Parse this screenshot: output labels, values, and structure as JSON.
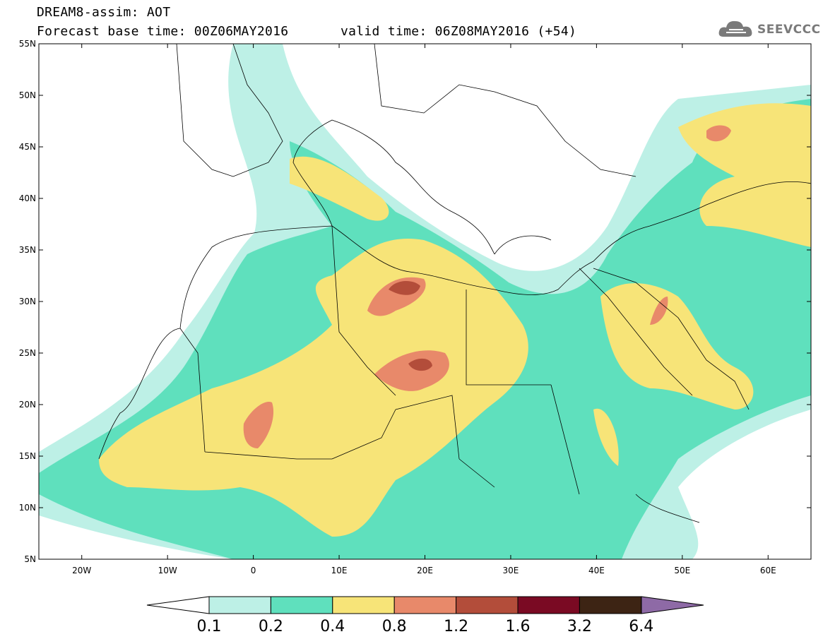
{
  "header": {
    "line1": "DREAM8-assim: AOT",
    "base_time": "Forecast base time: 00Z06MAY2016",
    "valid_time": "valid time: 06Z08MAY2016 (+54)",
    "logo_text": "SEEVCCC",
    "logo_icon": "cloud-icon"
  },
  "map": {
    "lon_range": [
      -25,
      65
    ],
    "lat_range": [
      5,
      55
    ],
    "lat_ticks": [
      "55N",
      "50N",
      "45N",
      "40N",
      "35N",
      "30N",
      "25N",
      "20N",
      "15N",
      "10N",
      "5N"
    ],
    "lon_ticks": [
      "20W",
      "10W",
      "0",
      "10E",
      "20E",
      "30E",
      "40E",
      "50E",
      "60E"
    ],
    "coastlines": "country-borders-outline"
  },
  "colorbar": {
    "labels": [
      "0.1",
      "0.2",
      "0.4",
      "0.8",
      "1.2",
      "1.6",
      "3.2",
      "6.4"
    ],
    "colors": [
      "#ffffff",
      "#bdf0e6",
      "#5fe0bd",
      "#f7e478",
      "#e8896a",
      "#b34d3a",
      "#7a0a23",
      "#3d2414",
      "#8e6aa6"
    ]
  },
  "field_colors": {
    "c01": "#bdf0e6",
    "c02": "#5fe0bd",
    "c04": "#f7e478",
    "c08": "#e8896a",
    "c12": "#b34d3a",
    "c16": "#7a0a23"
  }
}
